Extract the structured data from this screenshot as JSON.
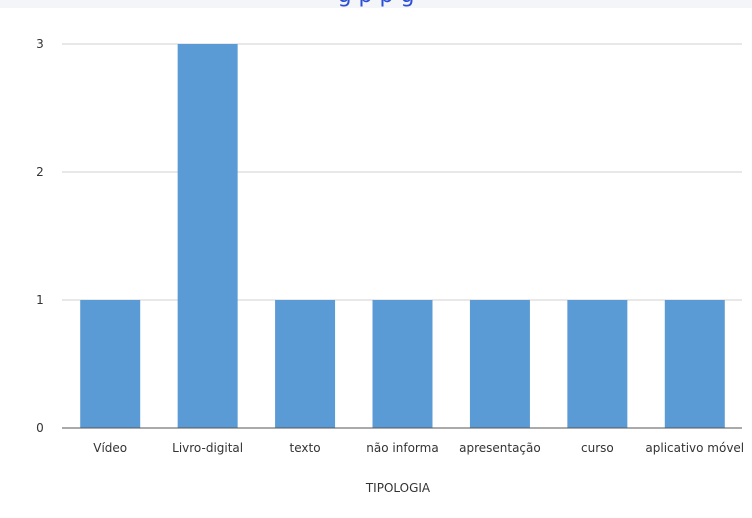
{
  "chart_data": {
    "type": "bar",
    "title_partial": "g                                   p   p   g",
    "categories": [
      "Vídeo",
      "Livro-digital",
      "texto",
      "não informa",
      "apresentação",
      "curso",
      "aplicativo móvel"
    ],
    "values": [
      1,
      3,
      1,
      1,
      1,
      1,
      1
    ],
    "xlabel": "TIPOLOGIA",
    "ylabel": "",
    "ylim": [
      0,
      3
    ],
    "yticks": [
      0,
      1,
      2,
      3
    ],
    "grid": true,
    "legend": "none",
    "bar_color": "#5b9bd5",
    "grid_color": "#d0d0d0",
    "axis_color": "#555555"
  }
}
